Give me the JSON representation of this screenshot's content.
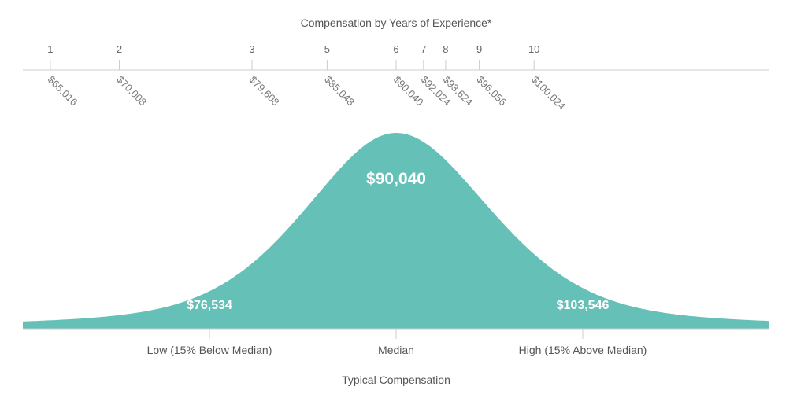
{
  "chart_data": {
    "type": "area",
    "title": "Compensation by Years of Experience*",
    "experience_scale": {
      "years": [
        "1",
        "2",
        "3",
        "5",
        "6",
        "7",
        "8",
        "9",
        "10"
      ],
      "salaries": [
        65016,
        70008,
        79608,
        85048,
        90040,
        92024,
        93624,
        96056,
        100024
      ],
      "salary_labels": [
        "$65,016",
        "$70,008",
        "$79,608",
        "$85,048",
        "$90,040",
        "$92,024",
        "$93,624",
        "$96,056",
        "$100,024"
      ]
    },
    "median": {
      "value": 90040,
      "label": "$90,040"
    },
    "low": {
      "value": 76534,
      "label": "$76,534",
      "category": "Low (15% Below Median)"
    },
    "high": {
      "value": 103546,
      "label": "$103,546",
      "category": "High (15% Above Median)"
    },
    "categories": [
      "Low (15% Below Median)",
      "Median",
      "High (15% Above Median)"
    ],
    "values": [
      76534,
      90040,
      103546
    ],
    "xlabel": "Typical Compensation",
    "fill_color": "#65c1b8",
    "axis_color": "#cccccc"
  }
}
